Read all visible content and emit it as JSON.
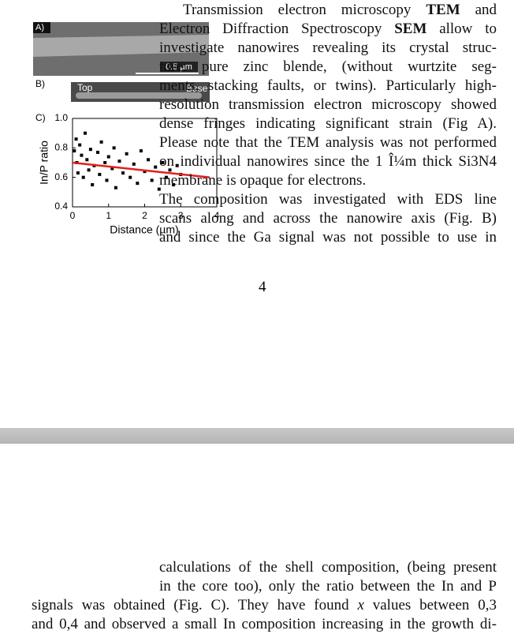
{
  "figure": {
    "panel_a": {
      "label": "A)",
      "scale_bar": "0.5 µm"
    },
    "panel_b": {
      "label": "B)",
      "top": "Top",
      "base": "Base"
    },
    "panel_c": {
      "label": "C)",
      "y_label": "In/P ratio",
      "x_label": "Distance (µm)",
      "xlim": [
        0,
        4
      ],
      "ylim": [
        0.4,
        1.0
      ],
      "xticks": [
        0,
        1,
        2,
        3,
        4
      ],
      "yticks": [
        0.4,
        0.6,
        0.8,
        {
          "value": 1.0,
          "label": "1.0"
        }
      ],
      "points": [
        [
          0.05,
          0.78
        ],
        [
          0.1,
          0.86
        ],
        [
          0.12,
          0.7
        ],
        [
          0.15,
          0.63
        ],
        [
          0.2,
          0.82
        ],
        [
          0.25,
          0.75
        ],
        [
          0.3,
          0.6
        ],
        [
          0.35,
          0.9
        ],
        [
          0.4,
          0.72
        ],
        [
          0.45,
          0.65
        ],
        [
          0.5,
          0.79
        ],
        [
          0.55,
          0.55
        ],
        [
          0.6,
          0.68
        ],
        [
          0.7,
          0.77
        ],
        [
          0.75,
          0.62
        ],
        [
          0.8,
          0.84
        ],
        [
          0.9,
          0.7
        ],
        [
          0.95,
          0.58
        ],
        [
          1.0,
          0.74
        ],
        [
          1.1,
          0.66
        ],
        [
          1.15,
          0.8
        ],
        [
          1.2,
          0.53
        ],
        [
          1.3,
          0.71
        ],
        [
          1.4,
          0.63
        ],
        [
          1.5,
          0.76
        ],
        [
          1.6,
          0.6
        ],
        [
          1.7,
          0.69
        ],
        [
          1.8,
          0.56
        ],
        [
          1.9,
          0.78
        ],
        [
          2.0,
          0.64
        ],
        [
          2.1,
          0.72
        ],
        [
          2.2,
          0.58
        ],
        [
          2.3,
          0.67
        ],
        [
          2.4,
          0.52
        ],
        [
          2.5,
          0.7
        ],
        [
          2.6,
          0.6
        ],
        [
          2.7,
          0.65
        ],
        [
          2.8,
          0.55
        ],
        [
          2.9,
          0.68
        ],
        [
          3.0,
          0.62
        ]
      ],
      "point_color": "#000000",
      "fit": {
        "x": [
          0,
          3.8
        ],
        "y": [
          0.7,
          0.6
        ],
        "color": "#e0201b"
      }
    }
  },
  "text_top": {
    "lines": [
      [
        "Transmission electron microscopy ",
        {
          "text": "TEM",
          "style": "bold"
        },
        " and"
      ],
      [
        "Electron Diffraction Spectroscopy ",
        {
          "text": "SEM",
          "style": "bold"
        },
        " allow to"
      ],
      [
        "investigate nanowires revealing its crystal struc-"
      ],
      [
        "ture: pure zinc blende, (without wurtzite seg-"
      ],
      [
        "ments, stacking faults, or twins). Particularly high-"
      ],
      [
        "resolution transmission electron microscopy showed"
      ],
      [
        "dense fringes indicating significant strain (Fig A)."
      ],
      [
        "Please note that the TEM analysis was not performed"
      ],
      [
        "on individual nanowires since the 1 Î¼m thick Si3N4"
      ],
      [
        "membrane is opaque for electrons."
      ],
      [
        "The composition was investigated with EDS line"
      ],
      [
        "scans along and across the nanowire axis (Fig. B)"
      ],
      [
        "and since the Ga signal was not possible to use in"
      ]
    ]
  },
  "page_number": "4",
  "text_bottom": {
    "lines": [
      [
        "calculations of the shell composition, (being present"
      ],
      [
        "in the core too), only the ratio between the In and P"
      ],
      [
        "signals was obtained (Fig. C). They have found ",
        {
          "text": "x",
          "style": "italic"
        },
        " values between 0,3"
      ],
      [
        "and 0,4 and observed a small In composition increasing in the growth di-"
      ]
    ]
  }
}
